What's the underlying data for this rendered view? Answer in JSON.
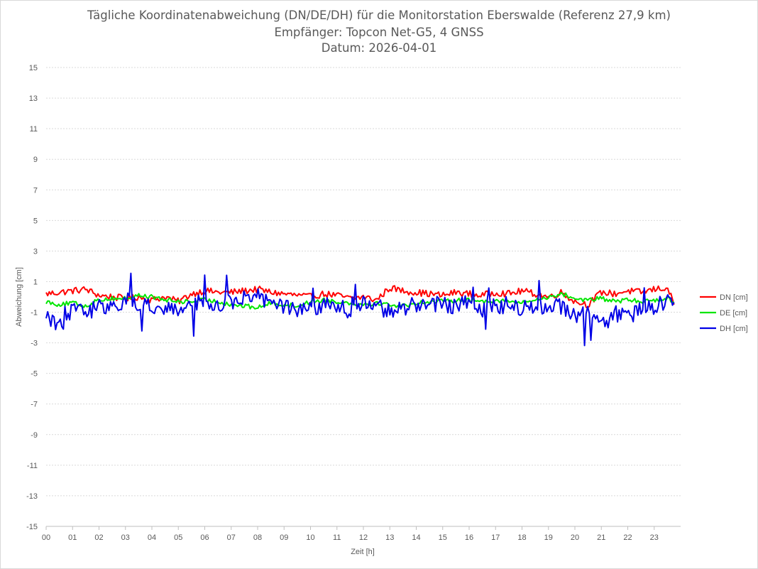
{
  "chart_data": {
    "type": "line",
    "title": "Tägliche Koordinatenabweichung (DN/DE/DH) für die Monitorstation Eberswalde (Referenz 27,9 km)",
    "subtitle": "Empfänger: Topcon Net-G5, 4 GNSS",
    "date_line": "Datum: 2026-04-01",
    "xlabel": "Zeit [h]",
    "ylabel": "Abweichung [cm]",
    "x_tick_labels": [
      "00",
      "01",
      "02",
      "03",
      "04",
      "05",
      "06",
      "07",
      "08",
      "09",
      "10",
      "11",
      "12",
      "13",
      "14",
      "15",
      "16",
      "17",
      "18",
      "19",
      "20",
      "21",
      "22",
      "23"
    ],
    "y_ticks": [
      15,
      13,
      11,
      9,
      7,
      5,
      3,
      1,
      -1,
      -3,
      -5,
      -7,
      -9,
      -11,
      -13,
      -15
    ],
    "xlim": [
      0,
      24
    ],
    "ylim": [
      -15,
      15
    ],
    "grid": "horizontal dotted",
    "legend_position": "right",
    "series": [
      {
        "name": "DN [cm]",
        "color": "#ff0000",
        "x": [
          0,
          0.5,
          1,
          1.5,
          2,
          2.5,
          3,
          3.5,
          4,
          4.5,
          5,
          5.5,
          6,
          6.5,
          7,
          7.5,
          8,
          8.5,
          9,
          9.5,
          10,
          10.5,
          11,
          11.5,
          12,
          12.5,
          13,
          13.5,
          14,
          14.5,
          15,
          15.5,
          16,
          16.5,
          17,
          17.5,
          18,
          18.5,
          19,
          19.5,
          20,
          20.5,
          21,
          21.5,
          22,
          22.5,
          23,
          23.5,
          23.75
        ],
        "y": [
          0.2,
          0.3,
          0.4,
          0.5,
          0.1,
          0.0,
          -0.1,
          0.0,
          -0.2,
          0.0,
          -0.3,
          0.2,
          0.4,
          0.3,
          0.3,
          0.4,
          0.5,
          0.3,
          0.2,
          0.1,
          0.0,
          0.2,
          0.1,
          -0.1,
          0.0,
          -0.2,
          0.6,
          0.4,
          0.3,
          0.2,
          0.1,
          0.3,
          0.2,
          0.1,
          0.3,
          0.2,
          0.4,
          0.2,
          0.0,
          0.3,
          -0.3,
          -0.5,
          0.3,
          0.2,
          0.4,
          0.3,
          0.5,
          0.6,
          -0.5
        ]
      },
      {
        "name": "DE [cm]",
        "color": "#00e600",
        "x": [
          0,
          0.5,
          1,
          1.5,
          2,
          2.5,
          3,
          3.5,
          4,
          4.5,
          5,
          5.5,
          6,
          6.5,
          7,
          7.5,
          8,
          8.5,
          9,
          9.5,
          10,
          10.5,
          11,
          11.5,
          12,
          12.5,
          13,
          13.5,
          14,
          14.5,
          15,
          15.5,
          16,
          16.5,
          17,
          17.5,
          18,
          18.5,
          19,
          19.5,
          20,
          20.5,
          21,
          21.5,
          22,
          22.5,
          23,
          23.5,
          23.75
        ],
        "y": [
          -0.3,
          -0.5,
          -0.4,
          -0.6,
          -0.2,
          -0.1,
          -0.1,
          0.1,
          0.0,
          -0.2,
          -0.3,
          -0.3,
          -0.2,
          -0.3,
          -0.5,
          -0.6,
          -0.7,
          -0.4,
          -0.5,
          -0.6,
          -0.3,
          -0.2,
          -0.3,
          -0.4,
          -0.5,
          -0.4,
          -0.5,
          -0.6,
          -0.4,
          -0.3,
          -0.3,
          -0.2,
          -0.2,
          -0.3,
          -0.2,
          -0.3,
          -0.4,
          -0.2,
          0.0,
          0.2,
          -0.1,
          -0.2,
          -0.1,
          -0.3,
          -0.2,
          -0.3,
          -0.2,
          -0.1,
          -0.3
        ]
      },
      {
        "name": "DH [cm]",
        "color": "#0000e6",
        "x": [
          0,
          0.5,
          1,
          1.5,
          2,
          2.5,
          3,
          3.5,
          4,
          4.5,
          5,
          5.5,
          6,
          6.5,
          7,
          7.5,
          8,
          8.5,
          9,
          9.5,
          10,
          10.5,
          11,
          11.5,
          12,
          12.5,
          13,
          13.5,
          14,
          14.5,
          15,
          15.5,
          16,
          16.5,
          17,
          17.5,
          18,
          18.5,
          19,
          19.5,
          20,
          20.5,
          21,
          21.5,
          22,
          22.5,
          23,
          23.5,
          23.75
        ],
        "y": [
          -1.2,
          -1.9,
          -0.8,
          -1.0,
          -0.6,
          -0.5,
          -0.2,
          -0.6,
          -0.5,
          -0.8,
          -0.9,
          -0.4,
          -0.2,
          -0.5,
          -0.3,
          -0.1,
          0.1,
          -0.4,
          -0.7,
          -1.0,
          -0.8,
          -0.6,
          -0.5,
          -0.9,
          -0.4,
          -0.6,
          -1.0,
          -0.8,
          -0.5,
          -0.4,
          -0.5,
          -0.6,
          -0.4,
          -0.8,
          -0.6,
          -0.5,
          -0.7,
          -0.8,
          -0.4,
          -0.6,
          -1.2,
          -1.1,
          -2.0,
          -1.0,
          -1.4,
          -0.7,
          -0.6,
          -0.4,
          -0.2
        ]
      }
    ]
  }
}
